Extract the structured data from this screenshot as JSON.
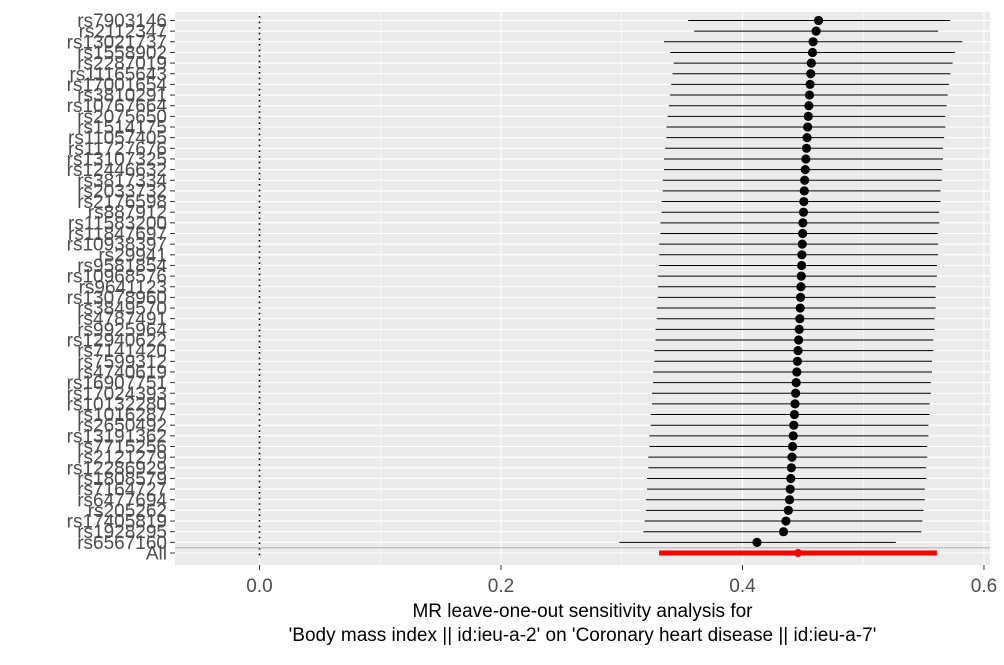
{
  "chart_data": {
    "type": "forest",
    "orientation": "horizontal",
    "xlabel_line1": "MR leave-one-out sensitivity analysis for",
    "xlabel_line2": "'Body mass index || id:ieu-a-2' on 'Coronary heart disease || id:ieu-a-7'",
    "ylabel": "",
    "xlim": [
      -0.07,
      0.605
    ],
    "x_ticks": [
      0.0,
      0.2,
      0.4,
      0.6
    ],
    "x_tick_labels": [
      "0.0",
      "0.2",
      "0.4",
      "0.6"
    ],
    "reference_line_x": 0,
    "grid": true,
    "background_color": "#ebebeb",
    "grid_color": "#ffffff",
    "snp_color": "#000000",
    "overall_color": "#ff0000",
    "snp_labels": [
      "rs7903146",
      "rs2112347",
      "rs13021737",
      "rs1558902",
      "rs2287019",
      "rs11165643",
      "rs17001654",
      "rs3810291",
      "rs10767664",
      "rs2075650",
      "rs1514175",
      "rs11057405",
      "rs11727676",
      "rs13107325",
      "rs12446632",
      "rs3817334",
      "rs2033732",
      "rs2176598",
      "rs887912",
      "rs11583200",
      "rs11847697",
      "rs10938397",
      "rs29941",
      "rs9581854",
      "rs10968576",
      "rs9641123",
      "rs13078960",
      "rs3849570",
      "rs4787491",
      "rs9925964",
      "rs12940622",
      "rs7141420",
      "rs7599312",
      "rs4740619",
      "rs16907751",
      "rs17024393",
      "rs10132280",
      "rs1016287",
      "rs2650492",
      "rs13191362",
      "rs7715256",
      "rs2121279",
      "rs12286929",
      "rs1808579",
      "rs7164727",
      "rs6477694",
      "rs205262",
      "rs17405819",
      "rs1928295",
      "rs6567160",
      "All"
    ],
    "estimates": [
      0.463,
      0.461,
      0.4585,
      0.458,
      0.457,
      0.4565,
      0.456,
      0.4555,
      0.455,
      0.4545,
      0.454,
      0.4535,
      0.453,
      0.4525,
      0.452,
      0.4515,
      0.4512,
      0.4508,
      0.4505,
      0.45,
      0.4498,
      0.4495,
      0.4492,
      0.449,
      0.4487,
      0.4484,
      0.4481,
      0.4478,
      0.4475,
      0.447,
      0.4465,
      0.446,
      0.4455,
      0.445,
      0.4445,
      0.444,
      0.4435,
      0.443,
      0.4425,
      0.442,
      0.4415,
      0.441,
      0.4405,
      0.44,
      0.4395,
      0.439,
      0.438,
      0.436,
      0.434,
      0.412,
      0.446
    ],
    "ci_lower": [
      0.355,
      0.36,
      0.335,
      0.34,
      0.343,
      0.342,
      0.341,
      0.34,
      0.339,
      0.338,
      0.337,
      0.337,
      0.336,
      0.335,
      0.335,
      0.334,
      0.334,
      0.333,
      0.333,
      0.332,
      0.332,
      0.331,
      0.331,
      0.331,
      0.33,
      0.33,
      0.33,
      0.329,
      0.329,
      0.328,
      0.328,
      0.327,
      0.327,
      0.326,
      0.326,
      0.325,
      0.325,
      0.324,
      0.324,
      0.323,
      0.323,
      0.322,
      0.322,
      0.321,
      0.321,
      0.32,
      0.32,
      0.319,
      0.318,
      0.298,
      0.331
    ],
    "ci_upper": [
      0.572,
      0.562,
      0.582,
      0.576,
      0.574,
      0.572,
      0.571,
      0.57,
      0.569,
      0.568,
      0.568,
      0.567,
      0.566,
      0.566,
      0.565,
      0.565,
      0.564,
      0.564,
      0.563,
      0.563,
      0.562,
      0.562,
      0.562,
      0.561,
      0.561,
      0.56,
      0.56,
      0.56,
      0.559,
      0.559,
      0.558,
      0.558,
      0.557,
      0.557,
      0.556,
      0.556,
      0.555,
      0.555,
      0.554,
      0.554,
      0.553,
      0.553,
      0.552,
      0.552,
      0.551,
      0.551,
      0.55,
      0.549,
      0.548,
      0.527,
      0.561
    ]
  }
}
